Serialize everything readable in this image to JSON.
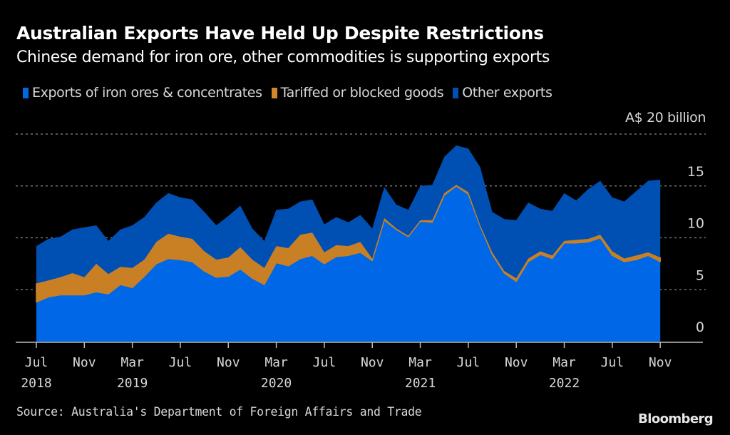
{
  "header": {
    "title": "Australian Exports Have Held Up Despite Restrictions",
    "subtitle": "Chinese demand for iron ore, other commodities is supporting exports"
  },
  "legend": [
    {
      "label": "Exports of iron ores & concentrates",
      "color": "#0068e6"
    },
    {
      "label": "Tariffed or blocked goods",
      "color": "#d4852a"
    },
    {
      "label": "Other exports",
      "color": "#0050b4"
    }
  ],
  "unit_label": "A$ 20 billion",
  "footer": {
    "source": "Source: Australia's Department of Foreign Affairs and Trade",
    "logo": "Bloomberg"
  },
  "chart_data": {
    "type": "area",
    "stacked": true,
    "title": "Australian Exports Have Held Up Despite Restrictions",
    "subtitle": "Chinese demand for iron ore, other commodities is supporting exports",
    "xlabel": "",
    "ylabel": "A$ billion",
    "ylim": [
      0,
      20
    ],
    "yticks": [
      0,
      5,
      10,
      15,
      20
    ],
    "ytick_labels": [
      "0",
      "5",
      "10",
      "15",
      "A$ 20 billion"
    ],
    "grid": true,
    "legend_position": "top-left",
    "x": [
      "2018-07",
      "2018-08",
      "2018-09",
      "2018-10",
      "2018-11",
      "2018-12",
      "2019-01",
      "2019-02",
      "2019-03",
      "2019-04",
      "2019-05",
      "2019-06",
      "2019-07",
      "2019-08",
      "2019-09",
      "2019-10",
      "2019-11",
      "2019-12",
      "2020-01",
      "2020-02",
      "2020-03",
      "2020-04",
      "2020-05",
      "2020-06",
      "2020-07",
      "2020-08",
      "2020-09",
      "2020-10",
      "2020-11",
      "2020-12",
      "2021-01",
      "2021-02",
      "2021-03",
      "2021-04",
      "2021-05",
      "2021-06",
      "2021-07",
      "2021-08",
      "2021-09",
      "2021-10",
      "2021-11",
      "2021-12",
      "2022-01",
      "2022-02",
      "2022-03",
      "2022-04",
      "2022-05",
      "2022-06",
      "2022-07",
      "2022-08",
      "2022-09",
      "2022-10",
      "2022-11"
    ],
    "xticks": [
      {
        "month": "Jul",
        "year": "2018",
        "index": 0
      },
      {
        "month": "Nov",
        "year": "",
        "index": 4
      },
      {
        "month": "Mar",
        "year": "2019",
        "index": 8
      },
      {
        "month": "Jul",
        "year": "",
        "index": 12
      },
      {
        "month": "Nov",
        "year": "",
        "index": 16
      },
      {
        "month": "Mar",
        "year": "2020",
        "index": 20
      },
      {
        "month": "Jul",
        "year": "",
        "index": 24
      },
      {
        "month": "Nov",
        "year": "",
        "index": 28
      },
      {
        "month": "Mar",
        "year": "2021",
        "index": 32
      },
      {
        "month": "Jul",
        "year": "",
        "index": 36
      },
      {
        "month": "Nov",
        "year": "",
        "index": 40
      },
      {
        "month": "Mar",
        "year": "2022",
        "index": 44
      },
      {
        "month": "Jul",
        "year": "",
        "index": 48
      },
      {
        "month": "Nov",
        "year": "",
        "index": 52
      }
    ],
    "series": [
      {
        "name": "Exports of iron ores & concentrates",
        "color": "#0068e6",
        "values": [
          3.8,
          4.3,
          4.5,
          4.5,
          4.5,
          4.8,
          4.6,
          5.5,
          5.2,
          6.3,
          7.5,
          8.0,
          7.9,
          7.7,
          6.8,
          6.2,
          6.3,
          7.0,
          6.1,
          5.5,
          7.6,
          7.3,
          8.0,
          8.3,
          7.5,
          8.2,
          8.3,
          8.6,
          7.8,
          11.7,
          10.8,
          10.1,
          11.6,
          11.5,
          14.1,
          15.0,
          14.2,
          11.1,
          8.4,
          6.6,
          5.8,
          7.7,
          8.4,
          8.0,
          9.5,
          9.5,
          9.6,
          10.0,
          8.3,
          7.7,
          7.9,
          8.3,
          7.7
        ]
      },
      {
        "name": "Tariffed or blocked goods",
        "color": "#c98024",
        "values": [
          1.8,
          1.6,
          1.7,
          2.1,
          1.7,
          2.7,
          1.9,
          1.7,
          1.9,
          1.6,
          2.1,
          2.4,
          2.2,
          2.2,
          1.9,
          1.7,
          1.8,
          2.1,
          1.8,
          1.6,
          1.6,
          1.7,
          2.3,
          2.2,
          1.1,
          1.1,
          0.9,
          1.0,
          0.2,
          0.2,
          0.1,
          0.1,
          0.1,
          0.2,
          0.2,
          0.1,
          0.2,
          0.1,
          0.2,
          0.2,
          0.3,
          0.3,
          0.3,
          0.3,
          0.2,
          0.3,
          0.3,
          0.3,
          0.4,
          0.3,
          0.4,
          0.3,
          0.4
        ]
      },
      {
        "name": "Other exports",
        "color": "#0050b4",
        "values": [
          3.6,
          4.0,
          3.9,
          4.2,
          4.8,
          3.7,
          3.2,
          3.6,
          4.1,
          4.1,
          3.8,
          3.9,
          3.8,
          3.8,
          3.8,
          3.3,
          4.0,
          4.0,
          3.0,
          2.6,
          3.5,
          3.8,
          3.2,
          3.2,
          2.7,
          2.7,
          2.3,
          2.6,
          2.9,
          3.0,
          2.3,
          2.5,
          3.3,
          3.4,
          3.5,
          3.8,
          4.2,
          5.6,
          3.9,
          5.0,
          5.6,
          5.4,
          4.1,
          4.3,
          4.6,
          3.8,
          4.8,
          5.2,
          5.2,
          5.5,
          6.2,
          6.9,
          7.5
        ]
      }
    ]
  }
}
